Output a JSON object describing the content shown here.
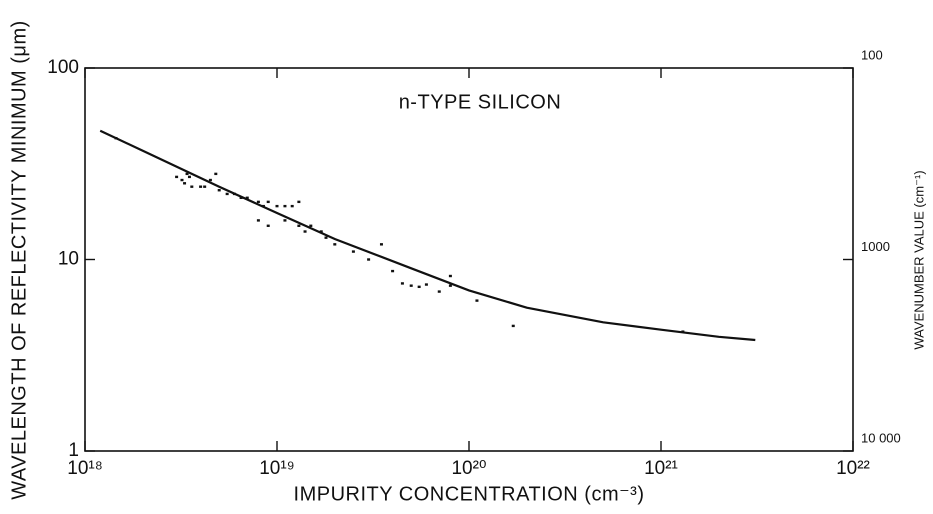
{
  "chart_data": {
    "type": "scatter",
    "annotation": "n-TYPE SILICON",
    "x_label": "IMPURITY CONCENTRATION (cm⁻³)",
    "y_label": "WAVELENGTH OF REFLECTIVITY MINIMUM (μm)",
    "y2_label": "WAVENUMBER VALUE (cm⁻¹)",
    "xscale": "log",
    "yscale": "log",
    "y2scale": "log",
    "color": "#111111",
    "xlim": [
      1e+18,
      1e+22
    ],
    "ylim": [
      1,
      100
    ],
    "y2lim": [
      10000,
      100
    ],
    "xticks": [
      {
        "value": 1e+18,
        "label": "10¹⁸"
      },
      {
        "value": 1e+19,
        "label": "10¹⁹"
      },
      {
        "value": 1e+20,
        "label": "10²⁰"
      },
      {
        "value": 1e+21,
        "label": "10²¹"
      },
      {
        "value": 1e+22,
        "label": "10²²"
      }
    ],
    "yticks": [
      1,
      10,
      100
    ],
    "y2ticks": [
      {
        "value": 10000,
        "label": "10 000"
      },
      1000,
      100
    ],
    "curve": {
      "x": [
        1.2e+18,
        2e+18,
        5e+18,
        1e+19,
        2e+19,
        5e+19,
        1e+20,
        2e+20,
        5e+20,
        1e+21,
        2e+21,
        3.1e+21
      ],
      "values": [
        47,
        37,
        24,
        17.5,
        12.8,
        9,
        6.9,
        5.6,
        4.7,
        4.3,
        3.95,
        3.8
      ]
    },
    "points": {
      "x": [
        1.45e+18,
        3e+18,
        3.2e+18,
        3.3e+18,
        3.4e+18,
        3.5e+18,
        3.6e+18,
        4e+18,
        4.2e+18,
        4.5e+18,
        4.8e+18,
        5e+18,
        5.5e+18,
        6e+18,
        6.5e+18,
        7e+18,
        8e+18,
        8.5e+18,
        9e+18,
        1e+19,
        1.1e+19,
        1.2e+19,
        1.3e+19,
        8e+18,
        9e+18,
        1.1e+19,
        1.3e+19,
        1.4e+19,
        1.5e+19,
        1.7e+19,
        1.8e+19,
        2e+19,
        2.5e+19,
        3e+19,
        3.5e+19,
        4e+19,
        4.5e+19,
        5e+19,
        5.5e+19,
        6e+19,
        7e+19,
        8e+19,
        8e+19,
        1.1e+20,
        1.7e+20,
        1.3e+21
      ],
      "values": [
        43,
        27,
        26,
        25,
        28,
        27,
        24,
        24,
        24,
        26,
        28,
        23,
        22,
        22,
        21,
        21,
        20,
        19,
        20,
        19,
        19,
        19,
        20,
        16,
        15,
        16,
        15,
        14,
        15,
        14,
        13,
        12,
        11,
        10,
        12,
        8.7,
        7.5,
        7.3,
        7.2,
        7.4,
        6.8,
        7.3,
        8.2,
        6.1,
        4.5,
        4.2
      ]
    }
  }
}
